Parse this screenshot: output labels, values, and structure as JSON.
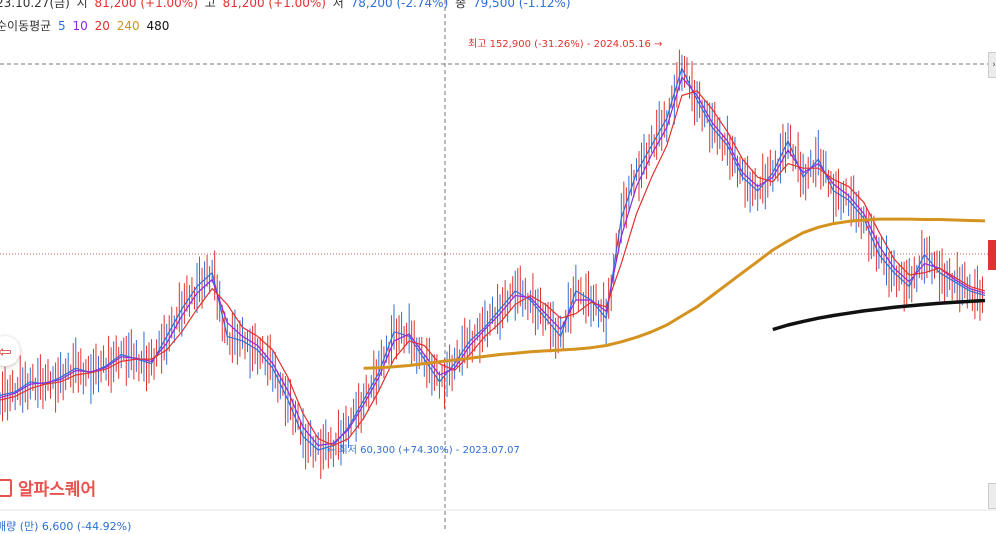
{
  "header": {
    "date": "23.10.27(금)",
    "open_label": "시",
    "open_value": "81,200 (+1.00%)",
    "high_label": "고",
    "high_value": "81,200 (+1.00%)",
    "low_label": "저",
    "low_value": "78,200 (-2.74%)",
    "close_label": "종",
    "close_value": "79,500 (-1.12%)"
  },
  "ma_legend": {
    "label": "순이동평균",
    "periods": [
      {
        "text": "5",
        "color": "#2f6fd6"
      },
      {
        "text": "10",
        "color": "#8a2be2"
      },
      {
        "text": "20",
        "color": "#e0322f"
      },
      {
        "text": "240",
        "color": "#d4921f"
      },
      {
        "text": "480",
        "color": "#111111"
      }
    ]
  },
  "annotations": {
    "high": "최고 152,900 (-31.26%) - 2024.05.16 →",
    "low": "← 최저 60,300 (+74.30%) - 2023.07.07"
  },
  "logo_text": "알파스퀘어",
  "bottom_partial": "매량  (만) 6,600 (-44.92%)",
  "chart_data": {
    "type": "line",
    "title": "",
    "xlabel": "",
    "ylabel": "",
    "series": [
      {
        "name": "5",
        "color": "#2f6fd6",
        "values": [
          73000,
          73800,
          76000,
          75500,
          77000,
          79000,
          78000,
          79500,
          82000,
          81000,
          80000,
          86000,
          92000,
          97000,
          100000,
          86000,
          85000,
          83000,
          79000,
          72000,
          64000,
          61000,
          62000,
          66000,
          72000,
          78000,
          87000,
          86000,
          81000,
          76000,
          80000,
          85000,
          88000,
          92000,
          96000,
          94000,
          90000,
          86000,
          96000,
          94000,
          90000,
          112000,
          122000,
          128000,
          134000,
          145000,
          138000,
          132000,
          128000,
          121000,
          118000,
          122000,
          129000,
          121000,
          125000,
          118000,
          116000,
          112000,
          104000,
          100000,
          97000,
          104000,
          100000,
          98000,
          96000,
          95000
        ]
      },
      {
        "name": "10",
        "color": "#8a2be2",
        "values": [
          72500,
          73500,
          75500,
          75800,
          76500,
          78500,
          78200,
          79200,
          81500,
          81200,
          80500,
          84500,
          90500,
          95500,
          98500,
          89000,
          86000,
          84000,
          80000,
          74000,
          66000,
          62000,
          62500,
          65500,
          71000,
          77000,
          85000,
          86500,
          82000,
          77500,
          79000,
          84000,
          87500,
          91000,
          95000,
          94500,
          91000,
          87500,
          94000,
          94000,
          91500,
          108000,
          119000,
          126000,
          132000,
          143000,
          139000,
          133000,
          129000,
          122000,
          119000,
          121000,
          127000,
          122000,
          124000,
          119500,
          117000,
          113000,
          106000,
          101000,
          98000,
          102000,
          101000,
          98500,
          96500,
          95500
        ]
      },
      {
        "name": "20",
        "color": "#e0322f",
        "values": [
          72000,
          72800,
          74500,
          75500,
          76000,
          77500,
          78000,
          78800,
          80500,
          81000,
          81000,
          83000,
          87000,
          92000,
          96500,
          93000,
          88000,
          86000,
          83000,
          77000,
          69000,
          63500,
          62000,
          63500,
          68000,
          74000,
          81000,
          85000,
          84000,
          80000,
          78500,
          82000,
          86000,
          89000,
          93000,
          95000,
          93000,
          90000,
          91000,
          93500,
          92500,
          102000,
          113000,
          121000,
          128000,
          139000,
          140000,
          136000,
          131000,
          125000,
          121000,
          120000,
          124000,
          123000,
          123000,
          120500,
          119000,
          115500,
          109000,
          103000,
          99500,
          100000,
          101000,
          99000,
          97000,
          96000
        ]
      },
      {
        "name": "240",
        "color": "#d4921f",
        "values": [
          null,
          null,
          null,
          null,
          null,
          null,
          null,
          null,
          null,
          null,
          null,
          null,
          null,
          null,
          null,
          null,
          null,
          null,
          null,
          null,
          null,
          null,
          null,
          null,
          79000,
          79100,
          79300,
          79600,
          80000,
          80400,
          80800,
          81200,
          81600,
          82000,
          82300,
          82600,
          82800,
          83000,
          83200,
          83500,
          84000,
          84800,
          85800,
          87000,
          88500,
          90500,
          92500,
          95000,
          97500,
          100000,
          102500,
          105000,
          107000,
          108800,
          110000,
          110800,
          111300,
          111600,
          111800,
          111800,
          111800,
          111700,
          111700,
          111600,
          111500,
          111400
        ]
      },
      {
        "name": "480",
        "color": "#111111",
        "values": [
          null,
          null,
          null,
          null,
          null,
          null,
          null,
          null,
          null,
          null,
          null,
          null,
          null,
          null,
          null,
          null,
          null,
          null,
          null,
          null,
          null,
          null,
          null,
          null,
          null,
          null,
          null,
          null,
          null,
          null,
          null,
          null,
          null,
          null,
          null,
          null,
          null,
          null,
          null,
          null,
          null,
          null,
          null,
          null,
          null,
          null,
          null,
          null,
          null,
          null,
          null,
          87500,
          88500,
          89300,
          90000,
          90600,
          91100,
          91600,
          92000,
          92400,
          92700,
          93000,
          93300,
          93500,
          93700,
          93900
        ]
      }
    ],
    "high_point": {
      "value": 152900,
      "date": "2024.05.16"
    },
    "low_point": {
      "value": 60300,
      "date": "2023.07.07"
    },
    "grid": false,
    "legend": "top-left"
  }
}
